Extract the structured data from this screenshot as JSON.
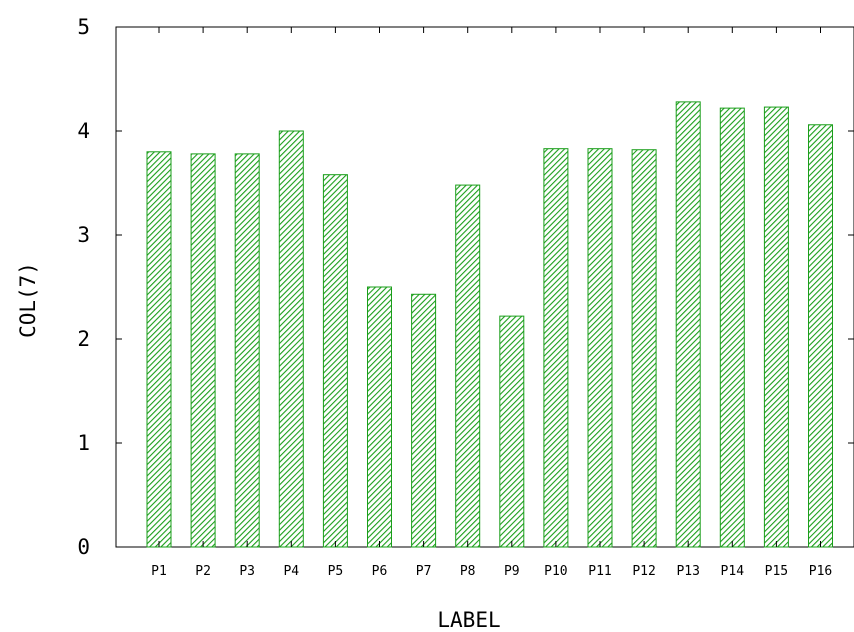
{
  "chart_data": {
    "type": "bar",
    "xlabel": "LABEL",
    "ylabel": "COL(7)",
    "ylim": [
      0,
      5
    ],
    "yticks": [
      "0",
      "1",
      "2",
      "3",
      "4",
      "5"
    ],
    "categories": [
      "P1",
      "P2",
      "P3",
      "P4",
      "P5",
      "P6",
      "P7",
      "P8",
      "P9",
      "P10",
      "P11",
      "P12",
      "P13",
      "P14",
      "P15",
      "P16"
    ],
    "values": [
      3.8,
      3.78,
      3.78,
      4.0,
      3.58,
      2.5,
      2.43,
      3.48,
      2.22,
      3.83,
      3.83,
      3.82,
      4.28,
      4.22,
      4.23,
      4.06
    ],
    "bar_color": "#1a9e1a",
    "bar_fill": "diagonal-hatch",
    "grid": false,
    "legend": "none"
  }
}
